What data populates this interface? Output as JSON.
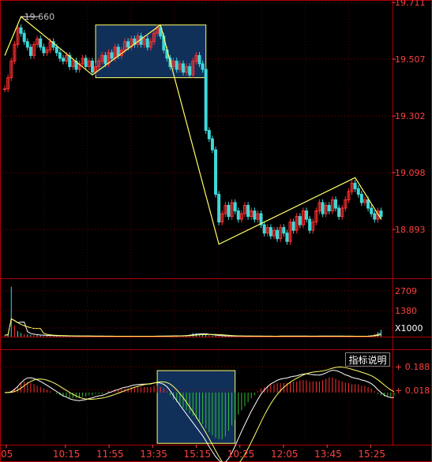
{
  "indicator_button": "指标说明",
  "colors": {
    "background": "#000000",
    "frame": "#b00000",
    "grid": "#8b0000",
    "axis_text": "#ff4040",
    "up": "#ff3030",
    "down": "#3fd8d8",
    "zigzag": "#ffff66",
    "ma": "#ffffff",
    "box_fill": "#10305a",
    "box_stroke": "#ffff66",
    "macd_pos": "#ff3030",
    "macd_neg": "#30c030"
  },
  "chart_data": [
    {
      "type": "candlestick",
      "title": "",
      "y_ticks": [
        "19.711",
        "19.507",
        "19.302",
        "19.098",
        "18.893"
      ],
      "ylim": [
        18.72,
        19.72
      ],
      "peak_label": "19.660",
      "zigzag": [
        [
          0,
          19.52
        ],
        [
          5,
          19.66
        ],
        [
          27,
          19.45
        ],
        [
          48,
          19.63
        ],
        [
          66,
          18.84
        ],
        [
          108,
          19.08
        ],
        [
          116,
          18.93
        ]
      ],
      "highlight_boxes": [
        [
          28,
          62,
          19.44,
          19.63
        ]
      ],
      "closes": [
        19.4,
        19.44,
        19.5,
        19.56,
        19.62,
        19.6,
        19.57,
        19.55,
        19.52,
        19.56,
        19.58,
        19.55,
        19.53,
        19.54,
        19.57,
        19.55,
        19.53,
        19.51,
        19.5,
        19.52,
        19.48,
        19.5,
        19.47,
        19.49,
        19.51,
        19.48,
        19.5,
        19.46,
        19.48,
        19.5,
        19.52,
        19.49,
        19.53,
        19.51,
        19.55,
        19.52,
        19.54,
        19.57,
        19.55,
        19.58,
        19.56,
        19.59,
        19.56,
        19.58,
        19.55,
        19.57,
        19.6,
        19.62,
        19.59,
        19.54,
        19.51,
        19.48,
        19.5,
        19.47,
        19.49,
        19.46,
        19.48,
        19.45,
        19.5,
        19.52,
        19.49,
        19.47,
        19.25,
        19.22,
        19.18,
        19.02,
        18.92,
        18.95,
        18.98,
        18.94,
        18.99,
        18.96,
        18.93,
        18.95,
        18.98,
        18.94,
        18.96,
        18.93,
        18.95,
        18.91,
        18.88,
        18.9,
        18.87,
        18.89,
        18.86,
        18.9,
        18.88,
        18.85,
        18.92,
        18.89,
        18.94,
        18.91,
        18.96,
        18.93,
        18.89,
        18.92,
        18.96,
        18.99,
        18.95,
        18.98,
        18.96,
        19.0,
        18.97,
        18.94,
        18.97,
        19.0,
        19.03,
        19.06,
        19.04,
        19.02,
        18.99,
        19.0,
        18.97,
        18.95,
        18.93,
        18.96,
        18.94
      ]
    },
    {
      "type": "bar",
      "title": "",
      "y_ticks": [
        "2709",
        "1380",
        "X1000"
      ],
      "ylim": [
        0,
        3000
      ],
      "note": "volume",
      "values": [
        80,
        120,
        2709,
        600,
        300,
        200,
        150,
        120,
        100,
        90,
        80,
        70,
        60,
        55,
        50,
        45,
        40,
        40,
        35,
        35,
        30,
        30,
        28,
        30,
        32,
        30,
        28,
        26,
        25,
        24,
        22,
        22,
        20,
        20,
        20,
        22,
        22,
        24,
        25,
        24,
        22,
        20,
        20,
        22,
        24,
        26,
        28,
        30,
        30,
        32,
        35,
        40,
        45,
        50,
        55,
        60,
        80,
        120,
        200,
        180,
        150,
        140,
        100,
        80,
        60,
        50,
        40,
        40,
        35,
        35,
        30,
        30,
        28,
        28,
        26,
        26,
        25,
        25,
        24,
        24,
        22,
        22,
        22,
        24,
        26,
        28,
        30,
        30,
        28,
        26,
        25,
        24,
        24,
        22,
        22,
        24,
        26,
        28,
        30,
        30,
        28,
        26,
        25,
        24,
        22,
        22,
        20,
        20,
        22,
        24,
        26,
        28,
        40,
        80,
        150,
        250,
        380
      ]
    },
    {
      "type": "bar",
      "title": "",
      "y_ticks": [
        "+ 0.188",
        "+ 0.018"
      ],
      "ylim": [
        -0.38,
        0.31
      ],
      "note": "macd histogram with two signal lines",
      "x_ticks": [
        "05",
        "10:15",
        "11:55",
        "13:35",
        "15:15",
        "10:25",
        "12:05",
        "13:45",
        "15:25"
      ],
      "values": [
        0.0,
        0.0,
        0.01,
        0.03,
        0.05,
        0.07,
        0.08,
        0.08,
        0.07,
        0.06,
        0.05,
        0.04,
        0.03,
        0.02,
        0.01,
        0.0,
        -0.01,
        -0.02,
        -0.03,
        -0.03,
        -0.04,
        -0.04,
        -0.04,
        -0.04,
        -0.03,
        -0.03,
        -0.02,
        -0.02,
        -0.01,
        -0.01,
        -0.01,
        0.0,
        0.01,
        0.01,
        0.02,
        0.02,
        0.03,
        0.03,
        0.03,
        0.04,
        0.04,
        0.04,
        0.04,
        0.04,
        0.04,
        0.04,
        0.05,
        0.05,
        0.04,
        0.03,
        0.01,
        -0.02,
        -0.05,
        -0.07,
        -0.09,
        -0.11,
        -0.13,
        -0.15,
        -0.17,
        -0.19,
        -0.21,
        -0.23,
        -0.26,
        -0.29,
        -0.31,
        -0.33,
        -0.34,
        -0.34,
        -0.32,
        -0.28,
        -0.24,
        -0.2,
        -0.16,
        -0.13,
        -0.1,
        -0.07,
        -0.04,
        -0.02,
        0.01,
        0.03,
        0.04,
        0.05,
        0.06,
        0.06,
        0.07,
        0.07,
        0.07,
        0.07,
        0.08,
        0.08,
        0.08,
        0.09,
        0.09,
        0.09,
        0.08,
        0.08,
        0.08,
        0.08,
        0.09,
        0.1,
        0.11,
        0.11,
        0.1,
        0.09,
        0.08,
        0.07,
        0.07,
        0.06,
        0.06,
        0.06,
        0.05,
        0.05,
        0.04,
        0.03,
        0.01,
        -0.01,
        -0.02,
        -0.03,
        -0.03,
        -0.03,
        -0.02
      ],
      "highlight_boxes": [
        [
          47,
          71,
          -0.37,
          0.16
        ]
      ]
    }
  ]
}
